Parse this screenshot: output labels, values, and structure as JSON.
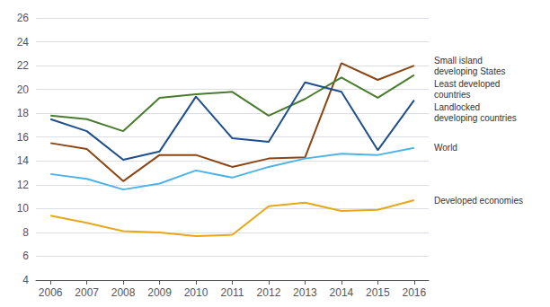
{
  "chart_data": {
    "type": "line",
    "x": [
      2006,
      2007,
      2008,
      2009,
      2010,
      2011,
      2012,
      2013,
      2014,
      2015,
      2016
    ],
    "series": [
      {
        "name": "Small island\ndeveloping States",
        "color": "#8B4513",
        "values": [
          15.5,
          15.0,
          12.3,
          14.5,
          14.5,
          13.5,
          14.2,
          14.3,
          22.2,
          20.8,
          22.0
        ]
      },
      {
        "name": "Least developed\ncountries",
        "color": "#4a7c2f",
        "values": [
          17.8,
          17.5,
          16.5,
          19.3,
          19.6,
          19.8,
          17.8,
          19.2,
          21.0,
          19.3,
          21.2
        ]
      },
      {
        "name": "Landlocked\ndeveloping countries",
        "color": "#1f4e8c",
        "values": [
          17.5,
          16.5,
          14.1,
          14.8,
          19.4,
          15.9,
          15.6,
          20.6,
          19.8,
          14.9,
          19.1
        ]
      },
      {
        "name": "World",
        "color": "#4db3e6",
        "values": [
          12.9,
          12.5,
          11.6,
          12.1,
          13.2,
          12.6,
          13.5,
          14.2,
          14.6,
          14.5,
          15.1
        ]
      },
      {
        "name": "Developed economies",
        "color": "#e6a817",
        "values": [
          9.4,
          8.8,
          8.1,
          8.0,
          7.7,
          7.8,
          10.2,
          10.5,
          9.8,
          9.9,
          10.7
        ]
      }
    ],
    "xlim": [
      2005.6,
      2016.4
    ],
    "xticks": [
      2006,
      2007,
      2008,
      2009,
      2010,
      2011,
      2012,
      2013,
      2014,
      2015,
      2016
    ],
    "ylim": [
      4,
      26
    ],
    "yticks": [
      4,
      6,
      8,
      10,
      12,
      14,
      16,
      18,
      20,
      22,
      24,
      26
    ],
    "grid": true
  }
}
